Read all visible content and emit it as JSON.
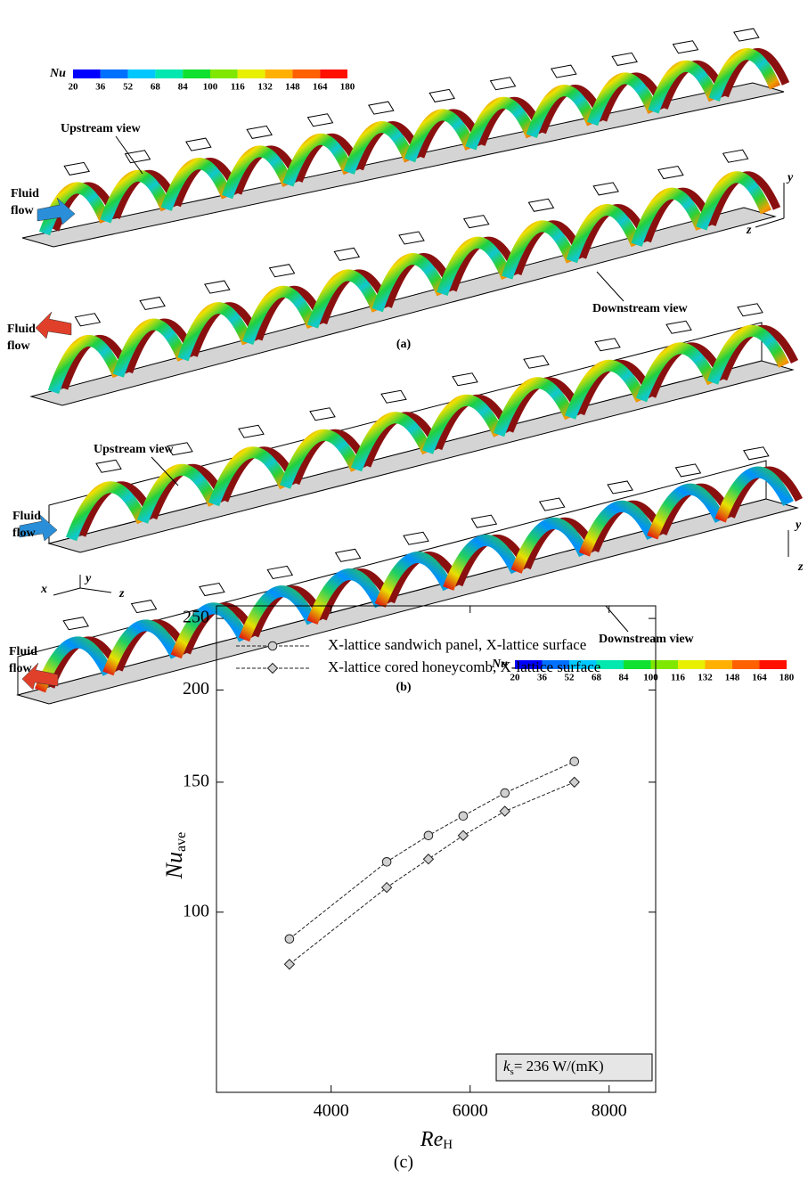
{
  "panel_a": {
    "colorbar": {
      "label": "Nu",
      "ticks": [
        20,
        36,
        52,
        68,
        84,
        100,
        116,
        132,
        148,
        164,
        180
      ],
      "colors": [
        "#0000ff",
        "#0070ff",
        "#00c8ff",
        "#00e8b0",
        "#10e030",
        "#80e800",
        "#e8f000",
        "#ffb000",
        "#ff6000",
        "#ff1000"
      ]
    },
    "upstream_label": "Upstream view",
    "downstream_label": "Downstream view",
    "fluid_flow_upper": [
      "Fluid",
      "flow"
    ],
    "fluid_flow_lower": [
      "Fluid",
      "flow"
    ],
    "axes": [
      "y",
      "z"
    ],
    "caption": "(a)"
  },
  "panel_b": {
    "colorbar": {
      "label": "Nu",
      "ticks": [
        20,
        36,
        52,
        68,
        84,
        100,
        116,
        132,
        148,
        164,
        180
      ],
      "colors": [
        "#0000ff",
        "#0070ff",
        "#00c8ff",
        "#00e8b0",
        "#10e030",
        "#80e800",
        "#e8f000",
        "#ffb000",
        "#ff6000",
        "#ff1000"
      ]
    },
    "upstream_label": "Upstream view",
    "downstream_label": "Downstream view",
    "fluid_flow_upper": [
      "Fluid",
      "flow"
    ],
    "fluid_flow_lower": [
      "Fluid",
      "flow"
    ],
    "axes_left": [
      "x",
      "y",
      "z"
    ],
    "axes_right": [
      "y",
      "z"
    ],
    "caption": "(b)"
  },
  "chart_data": {
    "type": "line",
    "x_label": {
      "text": "Re",
      "sub": "H"
    },
    "y_label": {
      "text": "Nu",
      "sub": "ave"
    },
    "x": [
      3400,
      4800,
      5400,
      5900,
      6500,
      7500
    ],
    "xlim": [
      2350,
      8670
    ],
    "xticks": [
      4000,
      6000,
      8000
    ],
    "xscale": "linear",
    "yscale": "log",
    "ylim": [
      57,
      260
    ],
    "yticks": [
      100,
      150,
      200,
      250
    ],
    "legend": "upper left",
    "series": [
      {
        "name": "X-lattice sandwich panel, X-lattice surface",
        "color": "#222222",
        "marker": "circle",
        "values": [
          92,
          117,
          127,
          135,
          145,
          160
        ]
      },
      {
        "name": "X-lattice cored honeycomb, X-lattice surface",
        "color": "#222222",
        "marker": "diamond",
        "values": [
          85,
          108,
          118,
          127,
          137,
          150
        ]
      }
    ],
    "annotation": {
      "symbol": "k",
      "sub": "s",
      "text": "= 236 W/(mK)"
    },
    "caption": "(c)"
  }
}
